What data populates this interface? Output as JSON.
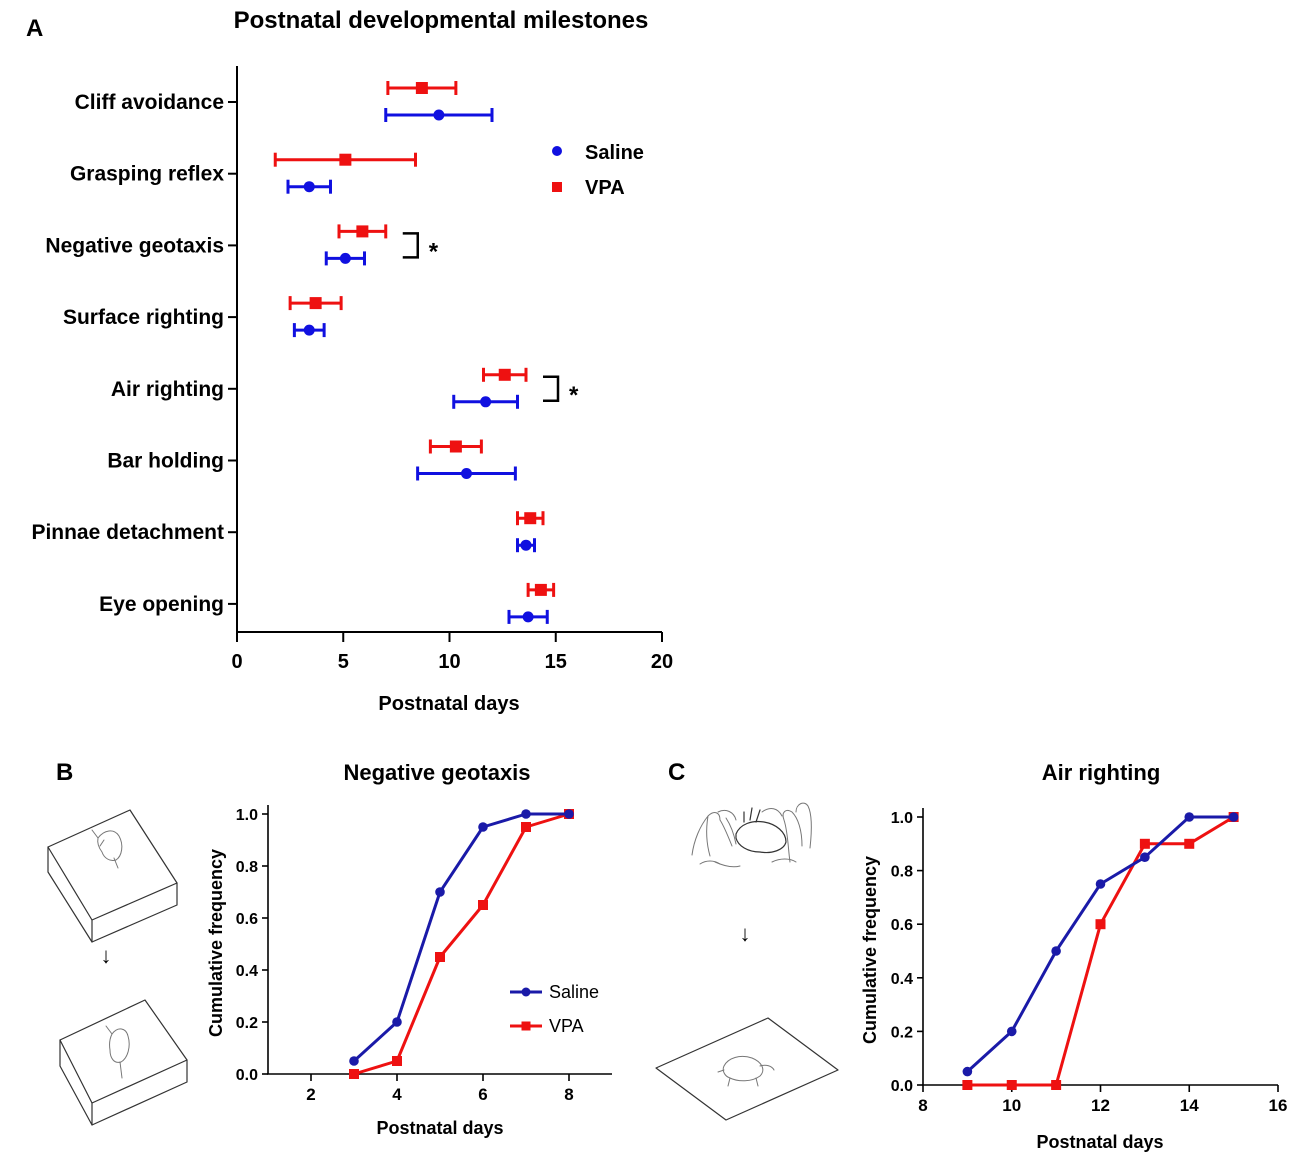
{
  "panels": {
    "a_label": "A",
    "b_label": "B",
    "c_label": "C",
    "arrow_glyph": "↓"
  },
  "colors": {
    "saline": "#1010e0",
    "vpa": "#ee1111",
    "saline_line": "#1a1aa8",
    "vpa_line": "#ee1111"
  },
  "icons": [
    "tilted-board-mouse-icon",
    "hands-holding-mouse-icon",
    "flat-surface-mouse-icon",
    "down-arrow-icon"
  ],
  "chart_data": [
    {
      "id": "A",
      "type": "dot-errorbar",
      "orientation": "horizontal",
      "title": "Postnatal developmental milestones",
      "xlabel": "Postnatal days",
      "ylabel": "",
      "xlim": [
        0,
        20
      ],
      "xticks": [
        0,
        5,
        10,
        15,
        20
      ],
      "grid": false,
      "legend": "top-right",
      "categories": [
        "Cliff avoidance",
        "Grasping reflex",
        "Negative geotaxis",
        "Surface righting",
        "Air righting",
        "Bar holding",
        "Pinnae detachment",
        "Eye opening"
      ],
      "series": [
        {
          "name": "VPA",
          "marker": "square",
          "values": [
            8.7,
            5.1,
            5.9,
            3.7,
            12.6,
            10.3,
            13.8,
            14.3
          ],
          "errors": [
            1.6,
            3.3,
            1.1,
            1.2,
            1.0,
            1.2,
            0.6,
            0.6
          ]
        },
        {
          "name": "Saline",
          "marker": "circle",
          "values": [
            9.5,
            3.4,
            5.1,
            3.4,
            11.7,
            10.8,
            13.6,
            13.7
          ],
          "errors": [
            2.5,
            1.0,
            0.9,
            0.7,
            1.5,
            2.3,
            0.4,
            0.9
          ]
        }
      ],
      "significance": [
        {
          "category": "Negative geotaxis",
          "label": "*"
        },
        {
          "category": "Air righting",
          "label": "*"
        }
      ]
    },
    {
      "id": "B",
      "type": "line",
      "title": "Negative geotaxis",
      "xlabel": "Postnatal days",
      "ylabel": "Cumulative frequency",
      "xlim": [
        1,
        9
      ],
      "xticks": [
        2,
        4,
        6,
        8
      ],
      "ylim": [
        0,
        1
      ],
      "yticks": [
        "0.0",
        "0.2",
        "0.4",
        "0.6",
        "0.8",
        "1.0"
      ],
      "grid": false,
      "legend": "bottom-right",
      "series": [
        {
          "name": "Saline",
          "marker": "circle",
          "x": [
            3,
            4,
            5,
            6,
            7,
            8
          ],
          "values": [
            0.05,
            0.2,
            0.7,
            0.95,
            1.0,
            1.0
          ]
        },
        {
          "name": "VPA",
          "marker": "square",
          "x": [
            3,
            4,
            5,
            6,
            7,
            8
          ],
          "values": [
            0.0,
            0.05,
            0.45,
            0.65,
            0.95,
            1.0
          ]
        }
      ]
    },
    {
      "id": "C",
      "type": "line",
      "title": "Air righting",
      "xlabel": "Postnatal days",
      "ylabel": "Cumulative frequency",
      "xlim": [
        8,
        16
      ],
      "xticks": [
        8,
        10,
        12,
        14,
        16
      ],
      "ylim": [
        0,
        1
      ],
      "yticks": [
        "0.0",
        "0.2",
        "0.4",
        "0.6",
        "0.8",
        "1.0"
      ],
      "grid": false,
      "legend": "none",
      "series": [
        {
          "name": "Saline",
          "marker": "circle",
          "x": [
            9,
            10,
            11,
            12,
            13,
            14,
            15
          ],
          "values": [
            0.05,
            0.2,
            0.5,
            0.75,
            0.85,
            1.0,
            1.0
          ]
        },
        {
          "name": "VPA",
          "marker": "square",
          "x": [
            9,
            10,
            11,
            12,
            13,
            14,
            15
          ],
          "values": [
            0.0,
            0.0,
            0.0,
            0.6,
            0.9,
            0.9,
            1.0
          ]
        }
      ]
    }
  ]
}
